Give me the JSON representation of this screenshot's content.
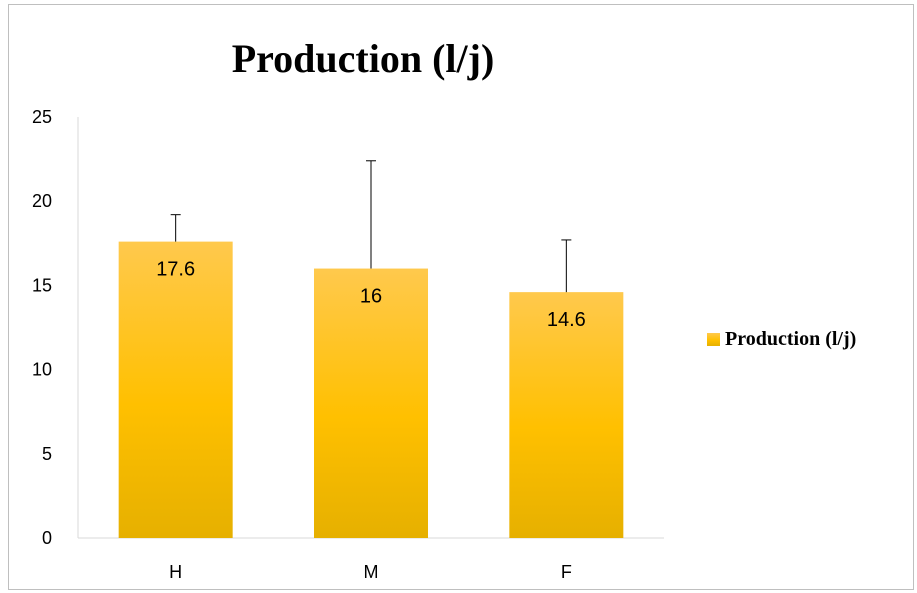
{
  "chart_data": {
    "type": "bar",
    "title": "Production (l/j)",
    "xlabel": "",
    "ylabel": "",
    "categories": [
      "H",
      "M",
      "F"
    ],
    "series": [
      {
        "name": "Production (l/j)",
        "values": [
          17.6,
          16,
          14.6
        ],
        "error_plus": [
          1.6,
          6.4,
          3.1
        ],
        "data_labels": [
          "17.6",
          "16",
          "14.6"
        ]
      }
    ],
    "ylim": [
      0,
      25
    ],
    "yticks": [
      0,
      5,
      10,
      15,
      20,
      25
    ],
    "grid": false,
    "legend": "right",
    "colors": {
      "bar_top": "#FFC94D",
      "bar_mid": "#FFC000",
      "bar_bottom": "#E6B000",
      "axis": "#D9D9D9",
      "error_bar": "#000000"
    }
  }
}
